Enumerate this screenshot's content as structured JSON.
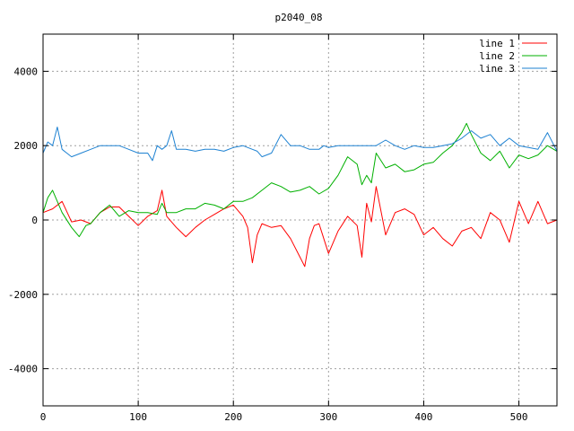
{
  "chart_data": {
    "type": "line",
    "title": "p2040_08",
    "xlabel": "",
    "ylabel": "",
    "xlim": [
      0,
      540
    ],
    "ylim": [
      -5000,
      5000
    ],
    "xticks": [
      0,
      100,
      200,
      300,
      400,
      500
    ],
    "yticks": [
      -4000,
      -2000,
      0,
      2000,
      4000
    ],
    "grid": true,
    "legend_position": "top-right",
    "series": [
      {
        "name": "line 1",
        "color": "#ff0000",
        "x": [
          0,
          10,
          20,
          30,
          40,
          50,
          60,
          70,
          80,
          90,
          100,
          110,
          120,
          125,
          130,
          140,
          150,
          160,
          170,
          180,
          190,
          200,
          210,
          215,
          220,
          225,
          230,
          240,
          250,
          260,
          270,
          275,
          280,
          285,
          290,
          300,
          310,
          320,
          330,
          335,
          340,
          345,
          350,
          360,
          370,
          380,
          390,
          400,
          410,
          420,
          430,
          440,
          450,
          460,
          470,
          480,
          490,
          500,
          510,
          520,
          530,
          540
        ],
        "y": [
          200,
          300,
          500,
          -50,
          0,
          -100,
          200,
          350,
          350,
          100,
          -150,
          100,
          250,
          800,
          100,
          -200,
          -450,
          -200,
          0,
          150,
          300,
          400,
          100,
          -200,
          -1150,
          -400,
          -100,
          -200,
          -150,
          -500,
          -1000,
          -1250,
          -500,
          -150,
          -100,
          -900,
          -300,
          100,
          -150,
          -1000,
          450,
          -50,
          900,
          -400,
          200,
          300,
          150,
          -400,
          -200,
          -500,
          -700,
          -300,
          -200,
          -500,
          200,
          0,
          -600,
          500,
          -100,
          500,
          -100,
          0
        ]
      },
      {
        "name": "line 2",
        "color": "#00b000",
        "x": [
          0,
          5,
          10,
          20,
          30,
          38,
          45,
          50,
          60,
          70,
          80,
          90,
          100,
          110,
          120,
          125,
          130,
          140,
          150,
          160,
          170,
          180,
          190,
          200,
          210,
          220,
          230,
          240,
          250,
          260,
          270,
          280,
          290,
          300,
          310,
          320,
          330,
          335,
          340,
          345,
          350,
          360,
          370,
          380,
          390,
          400,
          410,
          420,
          430,
          440,
          445,
          450,
          460,
          470,
          480,
          490,
          500,
          510,
          520,
          530,
          540
        ],
        "y": [
          200,
          600,
          800,
          200,
          -200,
          -450,
          -150,
          -100,
          200,
          400,
          100,
          250,
          200,
          200,
          150,
          450,
          200,
          200,
          300,
          300,
          450,
          400,
          300,
          500,
          500,
          600,
          800,
          1000,
          900,
          750,
          800,
          900,
          700,
          850,
          1200,
          1700,
          1500,
          950,
          1200,
          1000,
          1800,
          1400,
          1500,
          1300,
          1350,
          1500,
          1550,
          1800,
          2000,
          2350,
          2600,
          2300,
          1800,
          1600,
          1850,
          1400,
          1750,
          1650,
          1750,
          2000,
          1850
        ]
      },
      {
        "name": "line 3",
        "color": "#1e82d2",
        "x": [
          0,
          5,
          10,
          15,
          20,
          25,
          30,
          40,
          50,
          60,
          70,
          80,
          90,
          100,
          110,
          115,
          120,
          125,
          130,
          135,
          140,
          150,
          160,
          170,
          180,
          190,
          200,
          210,
          220,
          225,
          230,
          240,
          250,
          260,
          270,
          280,
          290,
          295,
          300,
          310,
          320,
          330,
          340,
          350,
          360,
          370,
          380,
          390,
          400,
          410,
          420,
          430,
          440,
          450,
          460,
          470,
          480,
          490,
          500,
          510,
          520,
          530,
          540
        ],
        "y": [
          1800,
          2100,
          2000,
          2500,
          1900,
          1800,
          1700,
          1800,
          1900,
          2000,
          2000,
          2000,
          1900,
          1800,
          1800,
          1600,
          2000,
          1900,
          2000,
          2400,
          1900,
          1900,
          1850,
          1900,
          1900,
          1850,
          1950,
          2000,
          1900,
          1850,
          1700,
          1800,
          2300,
          2000,
          2000,
          1900,
          1900,
          2000,
          1950,
          2000,
          2000,
          2000,
          2000,
          2000,
          2150,
          2000,
          1900,
          2000,
          1950,
          1950,
          2000,
          2050,
          2200,
          2400,
          2200,
          2300,
          2000,
          2200,
          2000,
          1950,
          1900,
          2350,
          1850
        ]
      }
    ]
  }
}
